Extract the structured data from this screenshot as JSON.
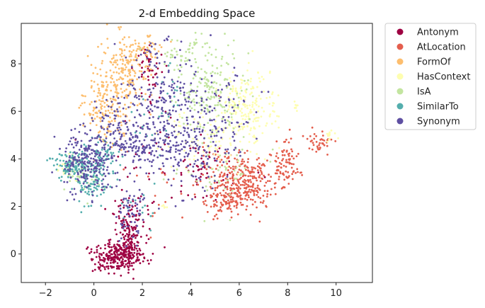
{
  "chart_data": {
    "type": "scatter",
    "title": "2-d Embedding Space",
    "xlabel": "",
    "ylabel": "",
    "xlim": [
      -3.0,
      11.5
    ],
    "ylim": [
      -1.2,
      9.7
    ],
    "xticks": [
      -2,
      0,
      2,
      4,
      6,
      8,
      10
    ],
    "yticks": [
      0,
      2,
      4,
      6,
      8
    ],
    "grid": false,
    "legend_position": "outside-right",
    "series": [
      {
        "name": "Antonym",
        "color": "#9e0142",
        "clusters": [
          {
            "cx": 1.0,
            "cy": -0.1,
            "sx": 0.55,
            "sy": 0.35,
            "n": 260
          },
          {
            "cx": 1.5,
            "cy": 0.6,
            "sx": 0.25,
            "sy": 0.6,
            "n": 120
          },
          {
            "cx": 2.3,
            "cy": 7.7,
            "sx": 0.3,
            "sy": 0.7,
            "n": 45
          },
          {
            "cx": 1.5,
            "cy": 1.8,
            "sx": 0.5,
            "sy": 0.5,
            "n": 50
          },
          {
            "cx": 4.5,
            "cy": 3.2,
            "sx": 1.2,
            "sy": 0.6,
            "n": 40
          },
          {
            "cx": 3.0,
            "cy": 4.6,
            "sx": 1.5,
            "sy": 1.0,
            "n": 40
          }
        ]
      },
      {
        "name": "AtLocation",
        "color": "#e45e4d",
        "clusters": [
          {
            "cx": 6.2,
            "cy": 3.0,
            "sx": 0.7,
            "sy": 0.5,
            "n": 260
          },
          {
            "cx": 7.9,
            "cy": 3.8,
            "sx": 0.3,
            "sy": 0.5,
            "n": 80
          },
          {
            "cx": 5.4,
            "cy": 2.2,
            "sx": 0.4,
            "sy": 0.3,
            "n": 90
          },
          {
            "cx": 9.3,
            "cy": 4.8,
            "sx": 0.3,
            "sy": 0.3,
            "n": 40
          },
          {
            "cx": 5.6,
            "cy": 4.0,
            "sx": 0.5,
            "sy": 0.3,
            "n": 40
          },
          {
            "cx": 3.6,
            "cy": 2.8,
            "sx": 1.2,
            "sy": 0.8,
            "n": 25
          }
        ]
      },
      {
        "name": "FormOf",
        "color": "#fdbe6e",
        "clusters": [
          {
            "cx": 1.2,
            "cy": 7.5,
            "sx": 0.5,
            "sy": 0.9,
            "n": 220
          },
          {
            "cx": 0.3,
            "cy": 6.3,
            "sx": 0.4,
            "sy": 0.5,
            "n": 80
          },
          {
            "cx": 2.2,
            "cy": 8.6,
            "sx": 0.3,
            "sy": 0.3,
            "n": 40
          },
          {
            "cx": 0.6,
            "cy": 5.3,
            "sx": 0.4,
            "sy": 0.4,
            "n": 40
          }
        ]
      },
      {
        "name": "HasContext",
        "color": "#fefeb0",
        "clusters": [
          {
            "cx": 6.3,
            "cy": 6.2,
            "sx": 0.6,
            "sy": 0.8,
            "n": 200
          },
          {
            "cx": 4.5,
            "cy": 4.9,
            "sx": 1.0,
            "sy": 0.8,
            "n": 100
          },
          {
            "cx": 9.6,
            "cy": 5.0,
            "sx": 0.2,
            "sy": 0.15,
            "n": 15
          },
          {
            "cx": 8.3,
            "cy": 6.2,
            "sx": 0.1,
            "sy": 0.1,
            "n": 8
          },
          {
            "cx": -1.1,
            "cy": 3.6,
            "sx": 0.3,
            "sy": 0.3,
            "n": 20
          },
          {
            "cx": 2.9,
            "cy": 2.0,
            "sx": 0.1,
            "sy": 0.1,
            "n": 6
          }
        ]
      },
      {
        "name": "IsA",
        "color": "#c3e5a0",
        "clusters": [
          {
            "cx": 4.8,
            "cy": 6.9,
            "sx": 0.7,
            "sy": 0.9,
            "n": 190
          },
          {
            "cx": 3.5,
            "cy": 8.4,
            "sx": 0.5,
            "sy": 0.3,
            "n": 30
          },
          {
            "cx": 4.1,
            "cy": 8.9,
            "sx": 0.1,
            "sy": 0.1,
            "n": 8
          },
          {
            "cx": 5.0,
            "cy": 3.5,
            "sx": 0.9,
            "sy": 0.7,
            "n": 50
          },
          {
            "cx": -0.6,
            "cy": 3.3,
            "sx": 0.5,
            "sy": 0.4,
            "n": 40
          }
        ]
      },
      {
        "name": "SimilarTo",
        "color": "#54aead",
        "clusters": [
          {
            "cx": -0.8,
            "cy": 3.7,
            "sx": 0.4,
            "sy": 0.3,
            "n": 130
          },
          {
            "cx": -0.1,
            "cy": 3.0,
            "sx": 0.35,
            "sy": 0.4,
            "n": 90
          },
          {
            "cx": 0.4,
            "cy": 4.2,
            "sx": 0.4,
            "sy": 0.4,
            "n": 60
          },
          {
            "cx": 2.7,
            "cy": 6.5,
            "sx": 0.6,
            "sy": 1.0,
            "n": 25
          },
          {
            "cx": 1.8,
            "cy": 2.0,
            "sx": 0.5,
            "sy": 0.4,
            "n": 15
          }
        ]
      },
      {
        "name": "Synonym",
        "color": "#5e4fa2",
        "clusters": [
          {
            "cx": -0.2,
            "cy": 3.9,
            "sx": 0.55,
            "sy": 0.7,
            "n": 230
          },
          {
            "cx": 2.0,
            "cy": 4.5,
            "sx": 0.8,
            "sy": 0.5,
            "n": 180
          },
          {
            "cx": 2.8,
            "cy": 6.8,
            "sx": 0.7,
            "sy": 1.2,
            "n": 180
          },
          {
            "cx": 4.2,
            "cy": 4.3,
            "sx": 0.8,
            "sy": 0.9,
            "n": 130
          },
          {
            "cx": 1.5,
            "cy": 1.6,
            "sx": 0.3,
            "sy": 0.6,
            "n": 60
          },
          {
            "cx": 5.0,
            "cy": 6.0,
            "sx": 0.8,
            "sy": 0.8,
            "n": 80
          },
          {
            "cx": 0.8,
            "cy": 5.6,
            "sx": 0.5,
            "sy": 0.6,
            "n": 60
          }
        ]
      }
    ]
  }
}
